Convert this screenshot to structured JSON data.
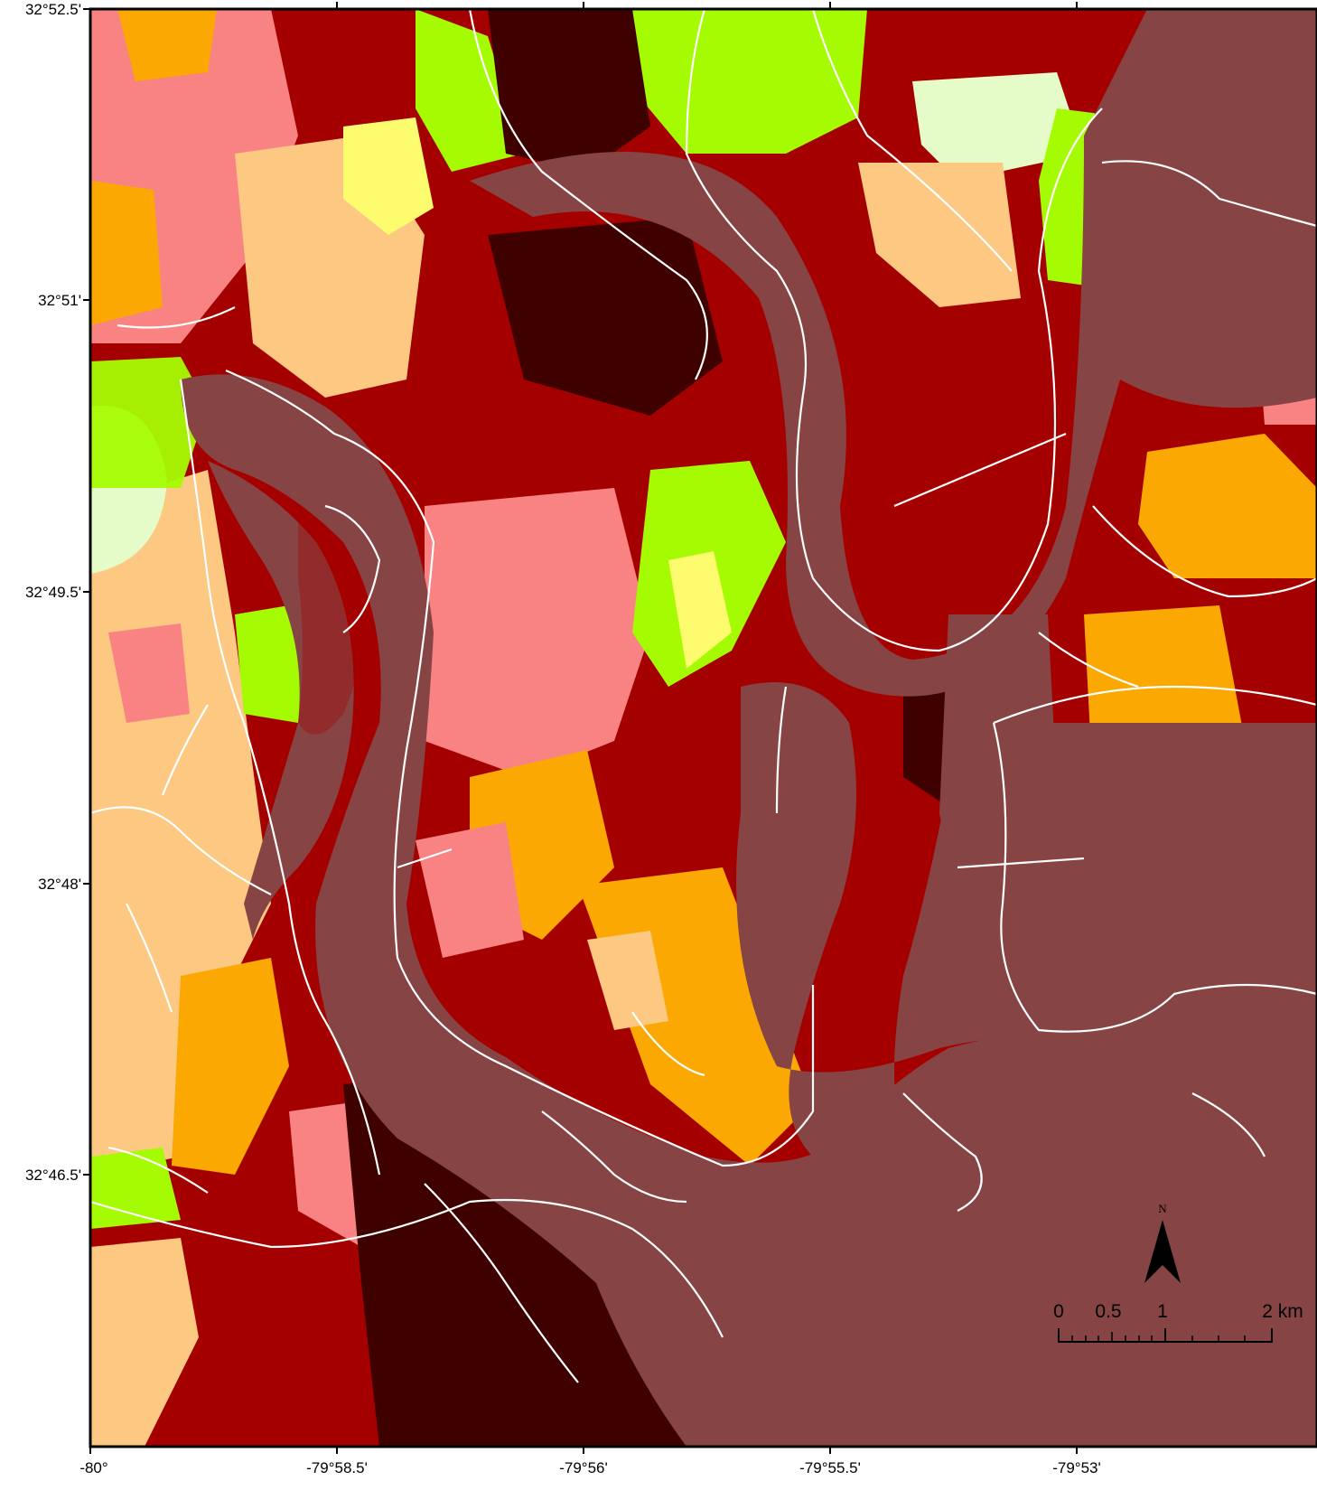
{
  "map": {
    "lat_labels": [
      "32°52.5'",
      "32°51'",
      "32°49.5'",
      "32°48'",
      "32°46.5'"
    ],
    "lon_labels": [
      "-80°",
      "-79°58.5'",
      "-79°56'",
      "-79°55.5'",
      "-79°53'"
    ],
    "north_label": "N",
    "scale_bar": {
      "labels": [
        "0",
        "0.5",
        "1",
        "2 km"
      ]
    },
    "colors": {
      "water_channel": "#874444",
      "deep_marsh": "#3f0000",
      "dark_red": "#a50000",
      "salmon": "#f98383",
      "light_orange": "#fcc882",
      "orange": "#fca802",
      "lime": "#a5fc02",
      "yellow": "#fcfc6e",
      "pale_green": "#e5fcc8",
      "streams": "#ffffff"
    }
  }
}
